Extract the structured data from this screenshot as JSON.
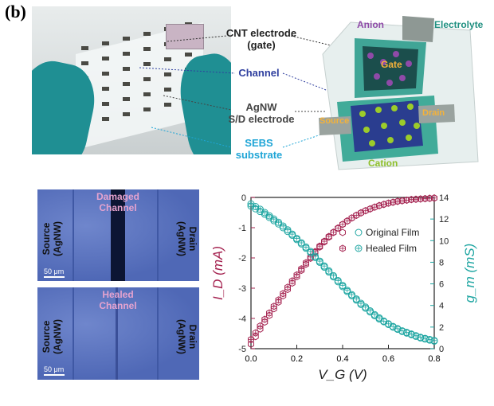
{
  "panel_label": "(b)",
  "photo_labels": {
    "cnt_electrode": "CNT electrode\n(gate)",
    "channel": "Channel",
    "agnw": "AgNW\nS/D electrode",
    "sebs": "SEBS\nsubstrate"
  },
  "schematic": {
    "anion": "Anion",
    "electrolyte": "Electrolyte",
    "gate": "Gate",
    "source": "Source",
    "drain": "Drain",
    "cation": "Cation"
  },
  "micrographs": [
    {
      "title": "Damaged\nChannel",
      "left": "Source\n(AgNW)",
      "right": "Drain\n(AgNW)",
      "scale": "50 μm"
    },
    {
      "title": "Healed\nChannel",
      "left": "Source\n(AgNW)",
      "right": "Drain\n(AgNW)",
      "scale": "50 μm"
    }
  ],
  "colors": {
    "id_color": "#a52451",
    "gm_color": "#1fa6a2"
  },
  "chart_data": {
    "type": "scatter",
    "xlabel": "V_G (V)",
    "ylabel_left": "I_D (mA)",
    "ylabel_right": "g_m (mS)",
    "xlim": [
      0,
      0.8
    ],
    "ylim_left": [
      -5,
      0
    ],
    "ylim_right": [
      0,
      14
    ],
    "xticks": [
      "0.0",
      "0.2",
      "0.4",
      "0.6",
      "0.8"
    ],
    "yticks_left": [
      "0",
      "-1",
      "-2",
      "-3",
      "-4",
      "-5"
    ],
    "yticks_right": [
      "0",
      "2",
      "4",
      "6",
      "8",
      "10",
      "12",
      "14"
    ],
    "legend": [
      "Original Film",
      "Healed Film"
    ],
    "legend_placement": "right",
    "x": [
      0.0,
      0.02,
      0.04,
      0.06,
      0.08,
      0.1,
      0.12,
      0.14,
      0.16,
      0.18,
      0.2,
      0.22,
      0.24,
      0.26,
      0.28,
      0.3,
      0.32,
      0.34,
      0.36,
      0.38,
      0.4,
      0.42,
      0.44,
      0.46,
      0.48,
      0.5,
      0.52,
      0.54,
      0.56,
      0.58,
      0.6,
      0.62,
      0.64,
      0.66,
      0.68,
      0.7,
      0.72,
      0.74,
      0.76,
      0.78,
      0.8
    ],
    "series": [
      {
        "name": "Original Film",
        "axis": "left",
        "values": [
          -4.85,
          -4.6,
          -4.35,
          -4.12,
          -3.9,
          -3.68,
          -3.46,
          -3.25,
          -3.04,
          -2.83,
          -2.62,
          -2.41,
          -2.21,
          -2.01,
          -1.82,
          -1.64,
          -1.47,
          -1.31,
          -1.16,
          -1.02,
          -0.89,
          -0.78,
          -0.68,
          -0.59,
          -0.51,
          -0.44,
          -0.38,
          -0.32,
          -0.27,
          -0.23,
          -0.19,
          -0.16,
          -0.13,
          -0.11,
          -0.09,
          -0.07,
          -0.06,
          -0.05,
          -0.04,
          -0.03,
          -0.02
        ]
      },
      {
        "name": "Healed Film",
        "axis": "left",
        "values": [
          -4.7,
          -4.48,
          -4.25,
          -4.03,
          -3.82,
          -3.6,
          -3.39,
          -3.18,
          -2.97,
          -2.76,
          -2.56,
          -2.36,
          -2.16,
          -1.97,
          -1.79,
          -1.61,
          -1.45,
          -1.29,
          -1.15,
          -1.01,
          -0.89,
          -0.78,
          -0.68,
          -0.59,
          -0.51,
          -0.44,
          -0.38,
          -0.32,
          -0.27,
          -0.23,
          -0.19,
          -0.16,
          -0.13,
          -0.11,
          -0.09,
          -0.07,
          -0.06,
          -0.05,
          -0.04,
          -0.03,
          -0.02
        ]
      },
      {
        "name": "Original Film",
        "axis": "right",
        "values": [
          13.2,
          12.95,
          12.7,
          12.45,
          12.15,
          11.85,
          11.55,
          11.2,
          10.85,
          10.5,
          10.1,
          9.7,
          9.3,
          8.9,
          8.45,
          8.0,
          7.55,
          7.1,
          6.65,
          6.2,
          5.75,
          5.3,
          4.9,
          4.5,
          4.1,
          3.75,
          3.4,
          3.05,
          2.75,
          2.5,
          2.25,
          2.0,
          1.8,
          1.6,
          1.45,
          1.3,
          1.15,
          1.0,
          0.9,
          0.8,
          0.7
        ]
      },
      {
        "name": "Healed Film",
        "axis": "right",
        "values": [
          13.4,
          13.15,
          12.9,
          12.6,
          12.3,
          12.0,
          11.7,
          11.35,
          11.0,
          10.6,
          10.2,
          9.8,
          9.4,
          9.0,
          8.55,
          8.1,
          7.65,
          7.2,
          6.75,
          6.3,
          5.85,
          5.4,
          5.0,
          4.6,
          4.2,
          3.85,
          3.5,
          3.15,
          2.85,
          2.55,
          2.3,
          2.05,
          1.85,
          1.65,
          1.5,
          1.35,
          1.2,
          1.05,
          0.95,
          0.85,
          0.75
        ]
      }
    ]
  }
}
